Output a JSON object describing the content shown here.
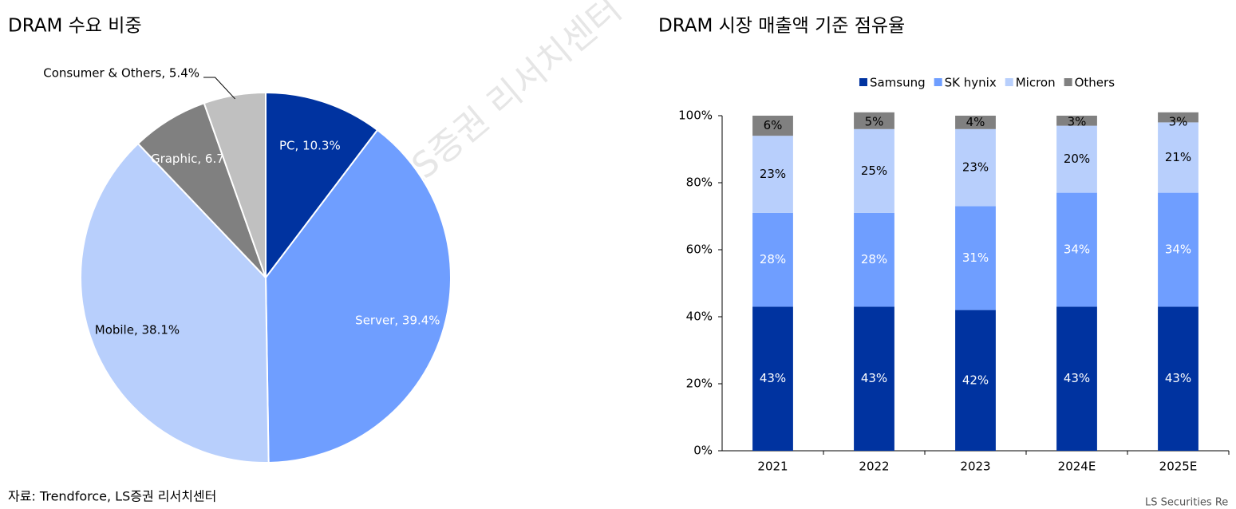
{
  "chart_data": [
    {
      "type": "pie",
      "title": "DRAM 수요 비중",
      "categories": [
        "PC",
        "Server",
        "Mobile",
        "Graphic",
        "Consumer & Others"
      ],
      "values": [
        10.3,
        39.4,
        38.1,
        6.7,
        5.4
      ],
      "value_labels": [
        "PC, 10.3%",
        "Server, 39.4%",
        "Mobile, 38.1%",
        "Graphic, 6.7%",
        "Consumer & Others, 5.4%"
      ],
      "colors": [
        "#0033a0",
        "#6f9eff",
        "#b8cffc",
        "#808080",
        "#c0c0c0"
      ]
    },
    {
      "type": "bar",
      "stacked": true,
      "title": "DRAM 시장 매출액 기준 점유율",
      "categories": [
        "2021",
        "2022",
        "2023",
        "2024E",
        "2025E"
      ],
      "series": [
        {
          "name": "Samsung",
          "color": "#0033a0",
          "values": [
            43,
            43,
            42,
            43,
            43
          ],
          "value_labels": [
            "43%",
            "43%",
            "42%",
            "43%",
            "43%"
          ]
        },
        {
          "name": "SK hynix",
          "color": "#6f9eff",
          "values": [
            28,
            28,
            31,
            34,
            34
          ],
          "value_labels": [
            "28%",
            "28%",
            "31%",
            "34%",
            "34%"
          ]
        },
        {
          "name": "Micron",
          "color": "#b8cffc",
          "values": [
            23,
            25,
            23,
            20,
            21
          ],
          "value_labels": [
            "23%",
            "25%",
            "23%",
            "20%",
            "21%"
          ]
        },
        {
          "name": "Others",
          "color": "#808080",
          "values": [
            6,
            5,
            4,
            3,
            3
          ],
          "value_labels": [
            "6%",
            "5%",
            "4%",
            "3%",
            "3%"
          ]
        }
      ],
      "ylim": [
        0,
        100
      ],
      "yticks": [
        {
          "value": 0,
          "label": "0%"
        },
        {
          "value": 20,
          "label": "20%"
        },
        {
          "value": 40,
          "label": "40%"
        },
        {
          "value": 60,
          "label": "60%"
        },
        {
          "value": 80,
          "label": "80%"
        },
        {
          "value": 100,
          "label": "100%"
        }
      ],
      "legend": "top"
    }
  ],
  "source": "자료: Trendforce, LS증권 리서치센터",
  "footer": "LS Securities Re",
  "watermark": "LS증권 리서치센터"
}
